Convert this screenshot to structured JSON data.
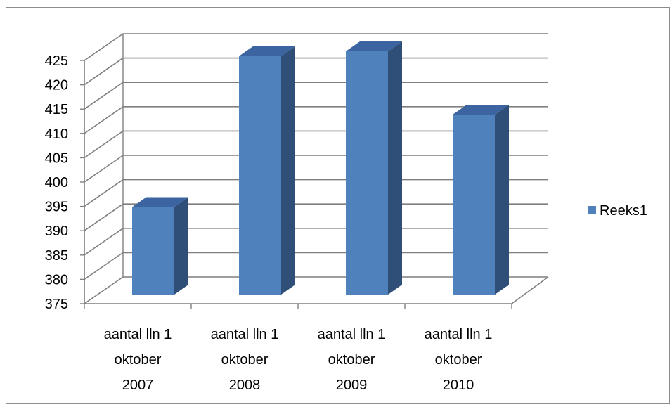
{
  "chart_data": {
    "type": "bar",
    "three_d": true,
    "categories": [
      [
        "aantal lln 1",
        "oktober",
        "2007"
      ],
      [
        "aantal lln 1",
        "oktober",
        "2008"
      ],
      [
        "aantal lln 1",
        "oktober",
        "2009"
      ],
      [
        "aantal lln 1",
        "oktober",
        "2010"
      ]
    ],
    "series": [
      {
        "name": "Reeks1",
        "values": [
          393,
          424,
          425,
          412
        ]
      }
    ],
    "title": "",
    "xlabel": "",
    "ylabel": "",
    "ylim": [
      375,
      425
    ],
    "yticks": [
      375,
      380,
      385,
      390,
      395,
      400,
      405,
      410,
      415,
      420,
      425
    ],
    "grid": true,
    "legend": "right",
    "colors": {
      "bar_front": "#4f81bd",
      "bar_side": "#2f4f78",
      "bar_top": "#3b64a0",
      "gridline": "#7f7f7f",
      "frame": "#8c8c8c"
    }
  }
}
